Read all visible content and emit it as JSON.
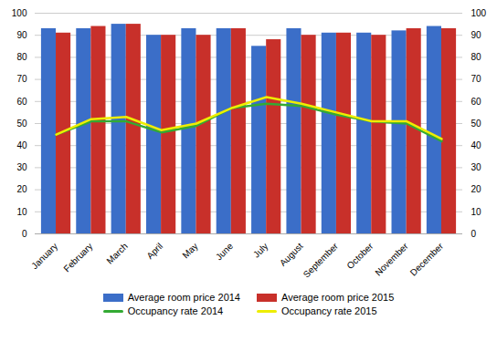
{
  "chart_data": {
    "type": "bar",
    "categories": [
      "January",
      "February",
      "March",
      "April",
      "May",
      "June",
      "July",
      "August",
      "September",
      "October",
      "November",
      "December"
    ],
    "series": [
      {
        "name": "Average room price 2014",
        "color": "#3B6EC8",
        "values": [
          93,
          93,
          95,
          90,
          93,
          93,
          85,
          93,
          91,
          91,
          92,
          94
        ]
      },
      {
        "name": "Average room price 2015",
        "color": "#C8302A",
        "values": [
          91,
          94,
          95,
          90,
          90,
          93,
          88,
          90,
          91,
          90,
          93,
          93
        ]
      },
      {
        "name": "Occupancy rate 2014",
        "type": "line",
        "axis": "y2",
        "color": "#33AA33",
        "values": [
          45,
          51,
          51,
          46,
          49,
          57,
          59,
          58,
          54,
          51,
          50,
          42
        ]
      },
      {
        "name": "Occupancy rate 2015",
        "type": "line",
        "axis": "y2",
        "color": "#EEEE00",
        "values": [
          45,
          52,
          53,
          47,
          50,
          57,
          62,
          59,
          55,
          51,
          51,
          43
        ]
      }
    ],
    "ylim": [
      0,
      100
    ],
    "yticks": [
      0,
      10,
      20,
      30,
      40,
      50,
      60,
      70,
      80,
      90,
      100
    ],
    "y2lim": [
      0,
      100
    ],
    "y2ticks": [
      0,
      10,
      20,
      30,
      40,
      50,
      60,
      70,
      80,
      90,
      100
    ],
    "grid": true,
    "legend": "bottom"
  }
}
